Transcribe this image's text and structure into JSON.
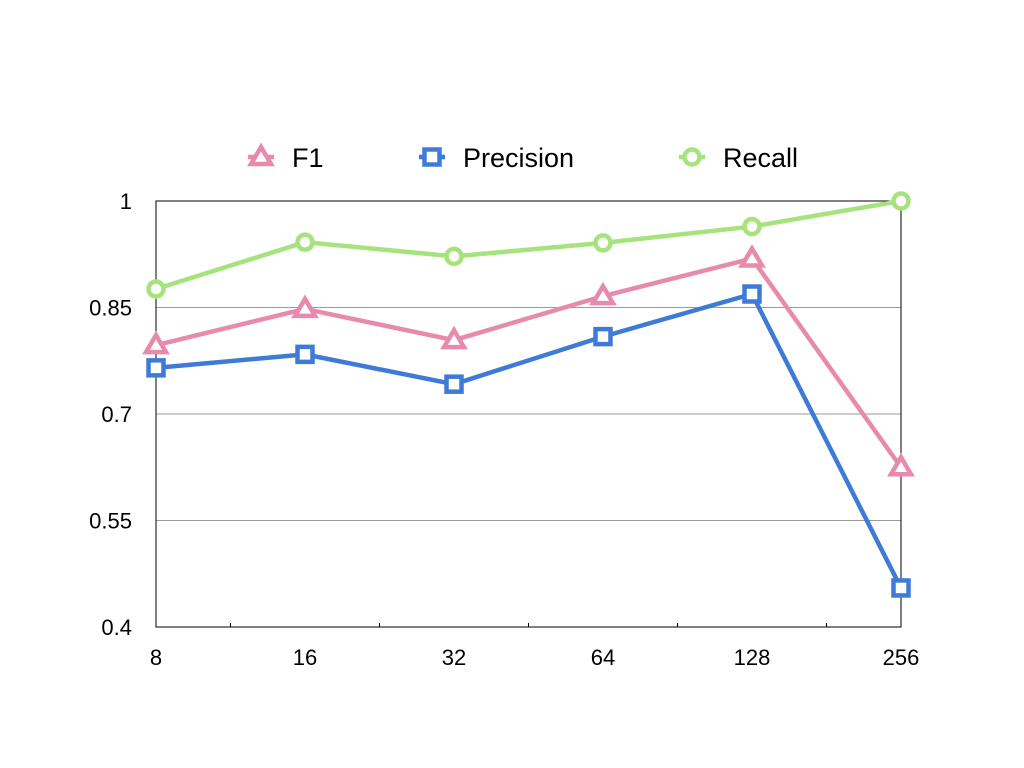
{
  "chart_data": {
    "type": "line",
    "title": "",
    "xlabel": "",
    "ylabel": "",
    "categories": [
      "8",
      "16",
      "32",
      "64",
      "128",
      "256"
    ],
    "ylim": [
      0.4,
      1.0
    ],
    "yticks": [
      "0.4",
      "0.55",
      "0.7",
      "0.85",
      "1"
    ],
    "ytick_values": [
      0.4,
      0.55,
      0.7,
      0.85,
      1.0
    ],
    "grid": true,
    "legend_position": "top",
    "series": [
      {
        "name": "F1",
        "marker": "triangle",
        "color": "#e88aac",
        "values": [
          0.797,
          0.848,
          0.804,
          0.866,
          0.919,
          0.625
        ]
      },
      {
        "name": "Precision",
        "marker": "square",
        "color": "#3e7bd6",
        "values": [
          0.765,
          0.784,
          0.742,
          0.809,
          0.869,
          0.455
        ]
      },
      {
        "name": "Recall",
        "marker": "circle",
        "color": "#a6e37c",
        "values": [
          0.876,
          0.942,
          0.922,
          0.941,
          0.964,
          1.0
        ]
      }
    ]
  }
}
